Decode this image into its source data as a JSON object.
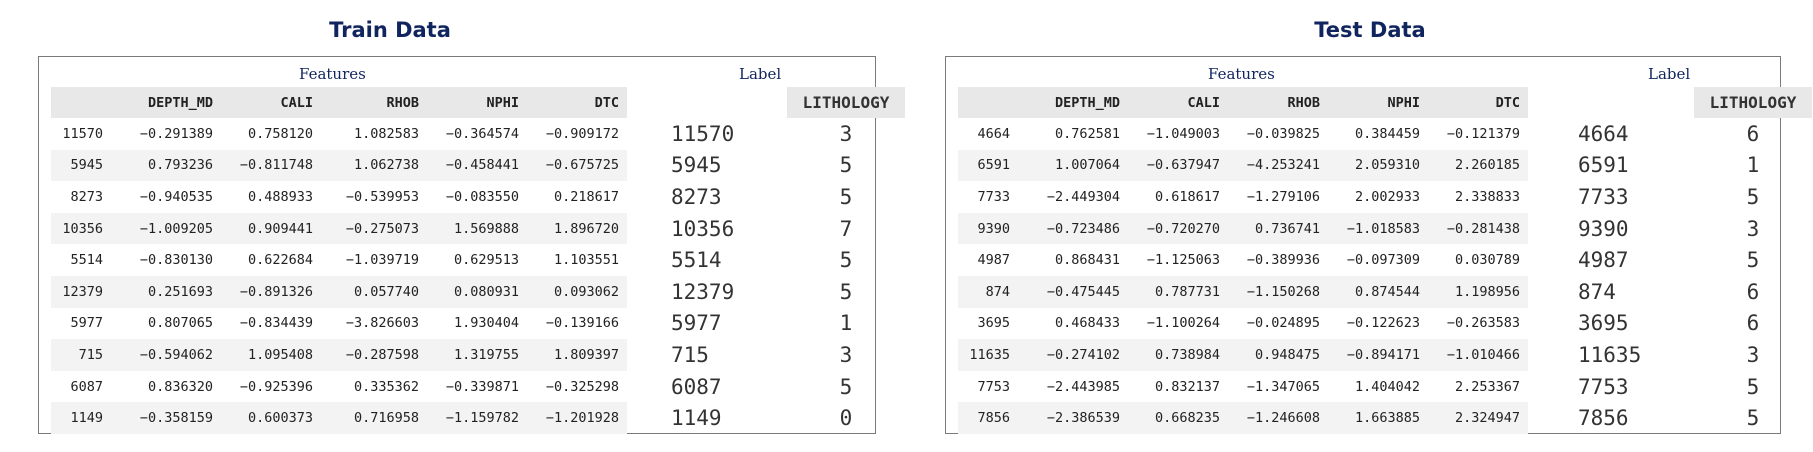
{
  "train": {
    "title": "Train Data",
    "features_label": "Features",
    "label_label": "Label",
    "columns": [
      "",
      "DEPTH_MD",
      "CALI",
      "RHOB",
      "NPHI",
      "DTC"
    ],
    "rows": [
      [
        "11570",
        "−0.291389",
        "0.758120",
        "1.082583",
        "−0.364574",
        "−0.909172"
      ],
      [
        "5945",
        "0.793236",
        "−0.811748",
        "1.062738",
        "−0.458441",
        "−0.675725"
      ],
      [
        "8273",
        "−0.940535",
        "0.488933",
        "−0.539953",
        "−0.083550",
        "0.218617"
      ],
      [
        "10356",
        "−1.009205",
        "0.909441",
        "−0.275073",
        "1.569888",
        "1.896720"
      ],
      [
        "5514",
        "−0.830130",
        "0.622684",
        "−1.039719",
        "0.629513",
        "1.103551"
      ],
      [
        "12379",
        "0.251693",
        "−0.891326",
        "0.057740",
        "0.080931",
        "0.093062"
      ],
      [
        "5977",
        "0.807065",
        "−0.834439",
        "−3.826603",
        "1.930404",
        "−0.139166"
      ],
      [
        "715",
        "−0.594062",
        "1.095408",
        "−0.287598",
        "1.319755",
        "1.809397"
      ],
      [
        "6087",
        "0.836320",
        "−0.925396",
        "0.335362",
        "−0.339871",
        "−0.325298"
      ],
      [
        "1149",
        "−0.358159",
        "0.600373",
        "0.716958",
        "−1.159782",
        "−1.201928"
      ]
    ],
    "label_header": "LITHOLOGY",
    "labels": [
      [
        "11570",
        "3"
      ],
      [
        "5945",
        "5"
      ],
      [
        "8273",
        "5"
      ],
      [
        "10356",
        "7"
      ],
      [
        "5514",
        "5"
      ],
      [
        "12379",
        "5"
      ],
      [
        "5977",
        "1"
      ],
      [
        "715",
        "3"
      ],
      [
        "6087",
        "5"
      ],
      [
        "1149",
        "0"
      ]
    ]
  },
  "test": {
    "title": "Test Data",
    "features_label": "Features",
    "label_label": "Label",
    "columns": [
      "",
      "DEPTH_MD",
      "CALI",
      "RHOB",
      "NPHI",
      "DTC"
    ],
    "rows": [
      [
        "4664",
        "0.762581",
        "−1.049003",
        "−0.039825",
        "0.384459",
        "−0.121379"
      ],
      [
        "6591",
        "1.007064",
        "−0.637947",
        "−4.253241",
        "2.059310",
        "2.260185"
      ],
      [
        "7733",
        "−2.449304",
        "0.618617",
        "−1.279106",
        "2.002933",
        "2.338833"
      ],
      [
        "9390",
        "−0.723486",
        "−0.720270",
        "0.736741",
        "−1.018583",
        "−0.281438"
      ],
      [
        "4987",
        "0.868431",
        "−1.125063",
        "−0.389936",
        "−0.097309",
        "0.030789"
      ],
      [
        "874",
        "−0.475445",
        "0.787731",
        "−1.150268",
        "0.874544",
        "1.198956"
      ],
      [
        "3695",
        "0.468433",
        "−1.100264",
        "−0.024895",
        "−0.122623",
        "−0.263583"
      ],
      [
        "11635",
        "−0.274102",
        "0.738984",
        "0.948475",
        "−0.894171",
        "−1.010466"
      ],
      [
        "7753",
        "−2.443985",
        "0.832137",
        "−1.347065",
        "1.404042",
        "2.253367"
      ],
      [
        "7856",
        "−2.386539",
        "0.668235",
        "−1.246608",
        "1.663885",
        "2.324947"
      ]
    ],
    "label_header": "LITHOLOGY",
    "labels": [
      [
        "4664",
        "6"
      ],
      [
        "6591",
        "1"
      ],
      [
        "7733",
        "5"
      ],
      [
        "9390",
        "3"
      ],
      [
        "4987",
        "5"
      ],
      [
        "874",
        "6"
      ],
      [
        "3695",
        "6"
      ],
      [
        "11635",
        "3"
      ],
      [
        "7753",
        "5"
      ],
      [
        "7856",
        "5"
      ]
    ]
  }
}
